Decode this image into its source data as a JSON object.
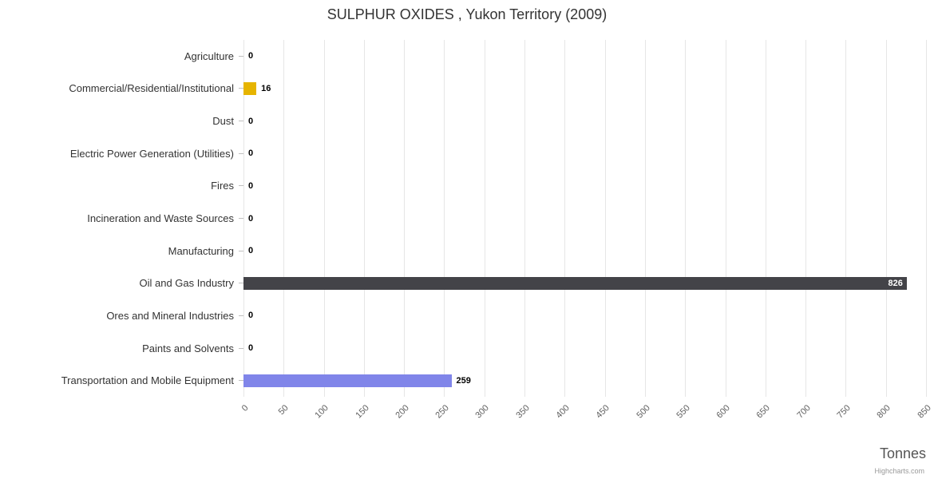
{
  "title": "SULPHUR OXIDES , Yukon Territory (2009)",
  "credits": {
    "label": "Highcharts.com"
  },
  "chart_data": {
    "type": "bar",
    "orientation": "horizontal",
    "title": "SULPHUR OXIDES , Yukon Territory (2009)",
    "categories": [
      "Agriculture",
      "Commercial/Residential/Institutional",
      "Dust",
      "Electric Power Generation (Utilities)",
      "Fires",
      "Incineration and Waste Sources",
      "Manufacturing",
      "Oil and Gas Industry",
      "Ores and Mineral Industries",
      "Paints and Solvents",
      "Transportation and Mobile Equipment"
    ],
    "values": [
      0,
      16,
      0,
      0,
      0,
      0,
      0,
      826,
      0,
      0,
      259
    ],
    "colors": [
      "#7cb5ec",
      "#e6b400",
      "#90ed7d",
      "#f7a35c",
      "#8085e9",
      "#f15c80",
      "#e4d354",
      "#434348",
      "#2b908f",
      "#f45b5b",
      "#8085e9"
    ],
    "xlabel": "Tonnes",
    "xlim": [
      0,
      850
    ],
    "x_ticks": [
      0,
      50,
      100,
      150,
      200,
      250,
      300,
      350,
      400,
      450,
      500,
      550,
      600,
      650,
      700,
      750,
      800,
      850
    ],
    "grid": true,
    "legend": false,
    "value_labels": true
  }
}
